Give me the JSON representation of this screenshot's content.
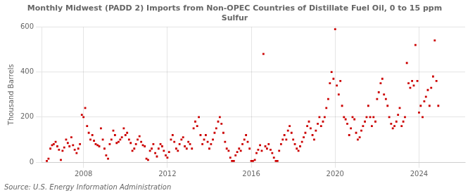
{
  "chart_data": {
    "type": "scatter",
    "title": "Monthly Midwest (PADD 2) Imports from Non-OPEC Countries of Distillate Fuel Oil, 0 to 15 ppm\nSulfur",
    "ylabel": "Thousand Barrels",
    "annotations": [
      "Source: U.S. Energy Information Administration"
    ],
    "color": "#cc0000",
    "marker": "square",
    "grid": true,
    "xlim": [
      2006.0,
      2026.2
    ],
    "xticks": [
      2008,
      2012,
      2016,
      2020,
      2024
    ],
    "ylim": [
      0,
      600
    ],
    "yticks": [
      0,
      200,
      400,
      600
    ],
    "x": [
      2006.25,
      2006.33,
      2006.42,
      2006.5,
      2006.58,
      2006.67,
      2006.75,
      2006.83,
      2006.92,
      2007.0,
      2007.08,
      2007.17,
      2007.25,
      2007.33,
      2007.42,
      2007.5,
      2007.58,
      2007.67,
      2007.75,
      2007.83,
      2007.92,
      2008.0,
      2008.08,
      2008.17,
      2008.25,
      2008.33,
      2008.42,
      2008.5,
      2008.58,
      2008.67,
      2008.75,
      2008.83,
      2008.92,
      2009.0,
      2009.08,
      2009.17,
      2009.25,
      2009.33,
      2009.42,
      2009.5,
      2009.58,
      2009.67,
      2009.75,
      2009.83,
      2009.92,
      2010.0,
      2010.08,
      2010.17,
      2010.25,
      2010.33,
      2010.42,
      2010.5,
      2010.58,
      2010.67,
      2010.75,
      2010.83,
      2010.92,
      2011.0,
      2011.08,
      2011.17,
      2011.25,
      2011.33,
      2011.42,
      2011.5,
      2011.58,
      2011.67,
      2011.75,
      2011.83,
      2011.92,
      2012.0,
      2012.08,
      2012.17,
      2012.25,
      2012.33,
      2012.42,
      2012.5,
      2012.58,
      2012.67,
      2012.75,
      2012.83,
      2012.92,
      2013.0,
      2013.08,
      2013.17,
      2013.25,
      2013.33,
      2013.42,
      2013.5,
      2013.58,
      2013.67,
      2013.75,
      2013.83,
      2013.92,
      2014.0,
      2014.08,
      2014.17,
      2014.25,
      2014.33,
      2014.42,
      2014.5,
      2014.58,
      2014.67,
      2014.75,
      2014.83,
      2014.92,
      2015.0,
      2015.08,
      2015.17,
      2015.25,
      2015.33,
      2015.42,
      2015.5,
      2015.58,
      2015.67,
      2015.75,
      2015.83,
      2015.92,
      2016.0,
      2016.08,
      2016.17,
      2016.25,
      2016.33,
      2016.42,
      2016.5,
      2016.58,
      2016.67,
      2016.75,
      2016.83,
      2016.92,
      2017.0,
      2017.08,
      2017.17,
      2017.25,
      2017.33,
      2017.42,
      2017.5,
      2017.58,
      2017.67,
      2017.75,
      2017.83,
      2017.92,
      2018.0,
      2018.08,
      2018.17,
      2018.25,
      2018.33,
      2018.42,
      2018.5,
      2018.58,
      2018.67,
      2018.75,
      2018.83,
      2018.92,
      2019.0,
      2019.08,
      2019.17,
      2019.25,
      2019.33,
      2019.42,
      2019.5,
      2019.58,
      2019.67,
      2019.75,
      2019.83,
      2019.92,
      2020.0,
      2020.08,
      2020.17,
      2020.25,
      2020.33,
      2020.42,
      2020.5,
      2020.58,
      2020.67,
      2020.75,
      2020.83,
      2020.92,
      2021.0,
      2021.08,
      2021.17,
      2021.25,
      2021.33,
      2021.42,
      2021.5,
      2021.58,
      2021.67,
      2021.75,
      2021.83,
      2021.92,
      2022.0,
      2022.08,
      2022.17,
      2022.25,
      2022.33,
      2022.42,
      2022.5,
      2022.58,
      2022.67,
      2022.75,
      2022.83,
      2022.92,
      2023.0,
      2023.08,
      2023.17,
      2023.25,
      2023.33,
      2023.42,
      2023.5,
      2023.58,
      2023.67,
      2023.75,
      2023.83,
      2023.92,
      2024.0,
      2024.08,
      2024.17,
      2024.25,
      2024.33,
      2024.42,
      2024.5,
      2024.58,
      2024.67,
      2024.75,
      2024.83,
      2024.92
    ],
    "values": [
      5,
      15,
      60,
      75,
      80,
      90,
      70,
      55,
      10,
      50,
      65,
      100,
      85,
      70,
      110,
      75,
      55,
      40,
      60,
      80,
      210,
      200,
      240,
      160,
      130,
      100,
      120,
      95,
      80,
      75,
      70,
      150,
      100,
      60,
      30,
      15,
      80,
      100,
      140,
      120,
      85,
      90,
      100,
      110,
      150,
      120,
      130,
      100,
      85,
      50,
      60,
      80,
      100,
      115,
      90,
      75,
      70,
      15,
      10,
      50,
      60,
      80,
      40,
      25,
      60,
      80,
      70,
      50,
      30,
      20,
      45,
      100,
      120,
      90,
      60,
      50,
      80,
      100,
      110,
      70,
      60,
      90,
      80,
      60,
      150,
      180,
      160,
      200,
      120,
      80,
      100,
      120,
      90,
      60,
      80,
      100,
      130,
      150,
      180,
      200,
      170,
      130,
      90,
      60,
      50,
      20,
      5,
      5,
      30,
      45,
      60,
      50,
      80,
      100,
      120,
      90,
      60,
      5,
      5,
      10,
      40,
      55,
      75,
      50,
      480,
      70,
      60,
      80,
      55,
      40,
      20,
      5,
      5,
      50,
      80,
      100,
      120,
      100,
      140,
      160,
      130,
      100,
      80,
      60,
      50,
      70,
      90,
      110,
      130,
      160,
      180,
      150,
      120,
      100,
      140,
      170,
      200,
      160,
      180,
      200,
      240,
      280,
      350,
      400,
      370,
      590,
      340,
      300,
      360,
      250,
      200,
      190,
      170,
      120,
      150,
      200,
      190,
      130,
      100,
      110,
      140,
      160,
      180,
      200,
      250,
      200,
      160,
      200,
      180,
      280,
      310,
      350,
      370,
      300,
      280,
      250,
      200,
      170,
      150,
      160,
      180,
      210,
      240,
      160,
      180,
      200,
      440,
      350,
      330,
      360,
      340,
      520,
      360,
      220,
      250,
      200,
      270,
      290,
      320,
      250,
      330,
      380,
      540,
      360,
      250
    ]
  }
}
